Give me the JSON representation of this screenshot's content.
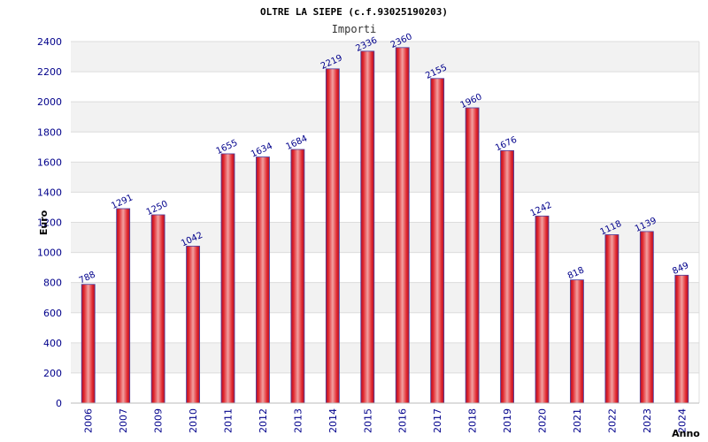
{
  "chart_data": {
    "type": "bar",
    "title": "OLTRE LA SIEPE (c.f.93025190203)",
    "subtitle": "Importi",
    "xlabel": "Anno",
    "ylabel": "Euro",
    "ylim": [
      0,
      2400
    ],
    "yticks": [
      0,
      200,
      400,
      600,
      800,
      1000,
      1200,
      1400,
      1600,
      1800,
      2000,
      2200,
      2400
    ],
    "categories": [
      "2006",
      "2007",
      "2009",
      "2010",
      "2011",
      "2012",
      "2013",
      "2014",
      "2015",
      "2016",
      "2017",
      "2018",
      "2019",
      "2020",
      "2021",
      "2022",
      "2023",
      "2024"
    ],
    "values": [
      788,
      1291,
      1250,
      1042,
      1655,
      1634,
      1684,
      2219,
      2336,
      2360,
      2155,
      1960,
      1676,
      1242,
      818,
      1118,
      1139,
      849
    ],
    "value_labels": [
      "788",
      "1291",
      "1250",
      "1042",
      "1655",
      "1634",
      "1684",
      "2219",
      "2336",
      "2360",
      "2155",
      "1960",
      "1676",
      "1242",
      "818",
      "1118",
      "1139",
      "849"
    ],
    "grid": true,
    "colors": {
      "bar_center": "#f2a0a0",
      "bar_mid": "#e0262c",
      "bar_edge": "#b0102a",
      "bar_outline": "#4b3fa0",
      "band": "#f2f2f2",
      "grid": "#dcdcdc",
      "text": "#00008b"
    }
  }
}
